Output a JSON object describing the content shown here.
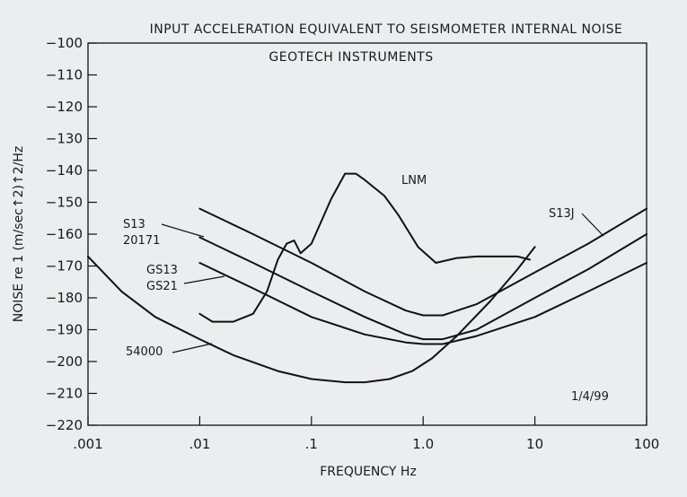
{
  "chart_data": {
    "type": "line",
    "title": "INPUT ACCELERATION EQUIVALENT TO SEISMOMETER INTERNAL NOISE",
    "subtitle": "GEOTECH INSTRUMENTS",
    "xlabel": "FREQUENCY Hz",
    "ylabel": "NOISE re 1 (m/sec↑2)↑2/Hz",
    "xscale": "log",
    "xlim": [
      0.001,
      100
    ],
    "ylim": [
      -220,
      -100
    ],
    "x_ticks": [
      0.001,
      0.01,
      0.1,
      1.0,
      10,
      100
    ],
    "x_tick_labels": [
      ".001",
      ".01",
      ".1",
      "1.0",
      "10",
      "100"
    ],
    "y_ticks": [
      -220,
      -210,
      -200,
      -190,
      -180,
      -170,
      -160,
      -150,
      -140,
      -130,
      -120,
      -110,
      -100
    ],
    "y_tick_labels": [
      "−220",
      "−210",
      "−200",
      "−190",
      "−180",
      "−170",
      "−160",
      "−150",
      "−140",
      "−130",
      "−120",
      "−110",
      "−100"
    ],
    "annotation": "1/4/99",
    "series": [
      {
        "name": "LNM",
        "x": [
          0.01,
          0.013,
          0.02,
          0.03,
          0.04,
          0.05,
          0.06,
          0.07,
          0.08,
          0.1,
          0.15,
          0.2,
          0.25,
          0.3,
          0.45,
          0.6,
          0.9,
          1.3,
          2,
          3,
          5,
          7,
          9
        ],
        "y": [
          -185,
          -187.5,
          -187.5,
          -185,
          -178,
          -168,
          -163,
          -162,
          -166,
          -163,
          -149,
          -141,
          -141,
          -143,
          -148,
          -154,
          -164,
          -169,
          -167.5,
          -167,
          -167,
          -167,
          -168
        ]
      },
      {
        "name": "S13J",
        "x": [
          0.01,
          0.03,
          0.1,
          0.3,
          0.7,
          1.0,
          1.5,
          3,
          10,
          30,
          100
        ],
        "y": [
          -152,
          -160,
          -169,
          -178,
          -184,
          -185.5,
          -185.5,
          -182,
          -172,
          -163,
          -152
        ]
      },
      {
        "name": "S13 20171",
        "x": [
          0.01,
          0.03,
          0.1,
          0.3,
          0.7,
          1.0,
          1.5,
          3,
          10,
          30,
          100
        ],
        "y": [
          -161,
          -169,
          -178,
          -186,
          -191.5,
          -193,
          -193,
          -190,
          -180,
          -171,
          -160
        ]
      },
      {
        "name": "GS13 GS21",
        "x": [
          0.01,
          0.03,
          0.1,
          0.3,
          0.7,
          1.0,
          1.5,
          3,
          10,
          30,
          100
        ],
        "y": [
          -169,
          -177,
          -186,
          -191.5,
          -194,
          -194.5,
          -194.5,
          -192,
          -186,
          -178,
          -169
        ]
      },
      {
        "name": "54000",
        "x": [
          0.001,
          0.002,
          0.004,
          0.01,
          0.02,
          0.05,
          0.1,
          0.2,
          0.3,
          0.5,
          0.8,
          1.2,
          2,
          4,
          7,
          10
        ],
        "y": [
          -167,
          -178,
          -186,
          -193,
          -198,
          -203,
          -205.5,
          -206.5,
          -206.5,
          -205.5,
          -203,
          -199,
          -192,
          -181,
          -171,
          -164
        ]
      }
    ],
    "curve_labels": [
      {
        "name": "LNM",
        "text": "LNM"
      },
      {
        "name": "S13J",
        "text": "S13J"
      },
      {
        "name": "S13 20171",
        "text": "S13",
        "text2": "20171"
      },
      {
        "name": "GS13 GS21",
        "text": "GS13",
        "text2": "GS21"
      },
      {
        "name": "54000",
        "text": "54000"
      }
    ]
  }
}
